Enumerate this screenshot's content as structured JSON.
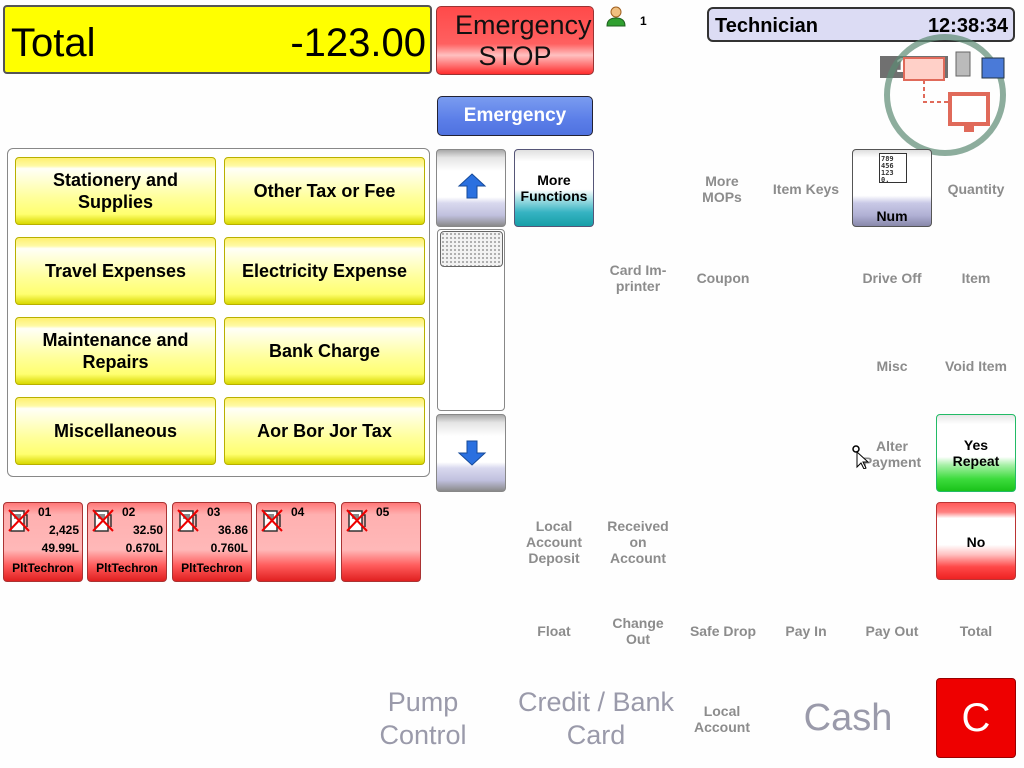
{
  "header": {
    "total_label": "Total",
    "total_value": "-123.00",
    "emergency_stop_label": "Emergency STOP",
    "user_count": "1",
    "operator": "Technician",
    "time": "12:38:34",
    "status_number": "1"
  },
  "tabs": {
    "emergency_label": "Emergency"
  },
  "categories": [
    {
      "label": "Stationery and Supplies"
    },
    {
      "label": "Other Tax or Fee"
    },
    {
      "label": "Travel Expenses"
    },
    {
      "label": "Electricity Expense"
    },
    {
      "label": "Maintenance and Repairs"
    },
    {
      "label": "Bank Charge"
    },
    {
      "label": "Miscellaneous"
    },
    {
      "label": "Aor Bor Jor Tax"
    }
  ],
  "functions": {
    "more_functions": "More Functions",
    "more_mops": "More MOPs",
    "item_keys": "Item Keys",
    "num": "Num",
    "quantity": "Quantity",
    "card_imprinter": "Card Im- printer",
    "coupon": "Coupon",
    "drive_off": "Drive Off",
    "item": "Item",
    "misc": "Misc",
    "void_item": "Void Item",
    "alter_payment": "Alter Payment",
    "yes_repeat": "Yes Repeat",
    "local_account_deposit": "Local Account Deposit",
    "received_on_account": "Received on Account",
    "no": "No",
    "float": "Float",
    "change_out": "Change Out",
    "safe_drop": "Safe Drop",
    "pay_in": "Pay In",
    "pay_out": "Pay Out",
    "total": "Total"
  },
  "payments": {
    "pump_control": "Pump Control",
    "credit_bank_card": "Credit / Bank Card",
    "local_account": "Local Account",
    "cash": "Cash",
    "clear": "C"
  },
  "pumps": [
    {
      "number": "01",
      "amount": "2,425",
      "volume": "49.99L",
      "name": "PltTechron"
    },
    {
      "number": "02",
      "amount": "32.50",
      "volume": "0.670L",
      "name": "PltTechron"
    },
    {
      "number": "03",
      "amount": "36.86",
      "volume": "0.760L",
      "name": "PltTechron"
    },
    {
      "number": "04",
      "amount": "",
      "volume": "",
      "name": ""
    },
    {
      "number": "05",
      "amount": "",
      "volume": "",
      "name": ""
    }
  ],
  "colors": {
    "total_bg": "#ffff00",
    "emergency_stop": "#ff4a4a",
    "emergency_tab": "#5b7ee8",
    "category_button": "#ffff9a",
    "yes_green": "#1ac21a",
    "no_red": "#ee2222",
    "clear_red": "#ee0000",
    "pump_idle": "#ffb8b8",
    "disabled_text": "#8c8c8c"
  },
  "icons": [
    "user-icon",
    "network-status-icon",
    "scroll-up-arrow-icon",
    "scroll-down-arrow-icon",
    "keypad-icon",
    "pump-disabled-icon",
    "mouse-pointer-icon"
  ]
}
